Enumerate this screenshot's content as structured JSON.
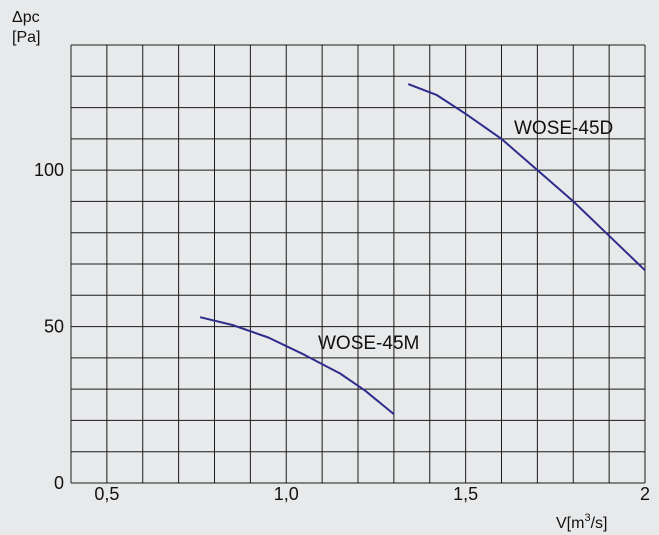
{
  "chart_data": {
    "type": "line",
    "ylabel": "Δpc",
    "ylabel_unit": "[Pa]",
    "xlabel_prefix": "V[m",
    "xlabel_sup": "3",
    "xlabel_suffix": "/s]",
    "xlim": [
      0.5,
      2.0
    ],
    "ylim": [
      0,
      135
    ],
    "x_ticks": [
      {
        "value": 0.5,
        "label": "0,5"
      },
      {
        "value": 1.0,
        "label": "1,0"
      },
      {
        "value": 1.5,
        "label": "1,5"
      },
      {
        "value": 2.0,
        "label": "2"
      }
    ],
    "y_ticks": [
      {
        "value": 0,
        "label": "0"
      },
      {
        "value": 50,
        "label": "50"
      },
      {
        "value": 100,
        "label": "100"
      }
    ],
    "grid": true,
    "series": [
      {
        "name": "WOSE-45M",
        "color": "#2e2d8c",
        "points": [
          [
            0.76,
            53
          ],
          [
            0.85,
            50.5
          ],
          [
            0.95,
            46.5
          ],
          [
            1.05,
            41
          ],
          [
            1.15,
            35
          ],
          [
            1.22,
            29.5
          ],
          [
            1.3,
            22
          ]
        ]
      },
      {
        "name": "WOSE-45D",
        "color": "#2e2d8c",
        "points": [
          [
            1.34,
            127.5
          ],
          [
            1.42,
            124
          ],
          [
            1.5,
            118
          ],
          [
            1.6,
            110
          ],
          [
            1.7,
            100
          ],
          [
            1.8,
            90
          ],
          [
            1.9,
            79
          ],
          [
            2.0,
            68
          ]
        ]
      }
    ]
  }
}
